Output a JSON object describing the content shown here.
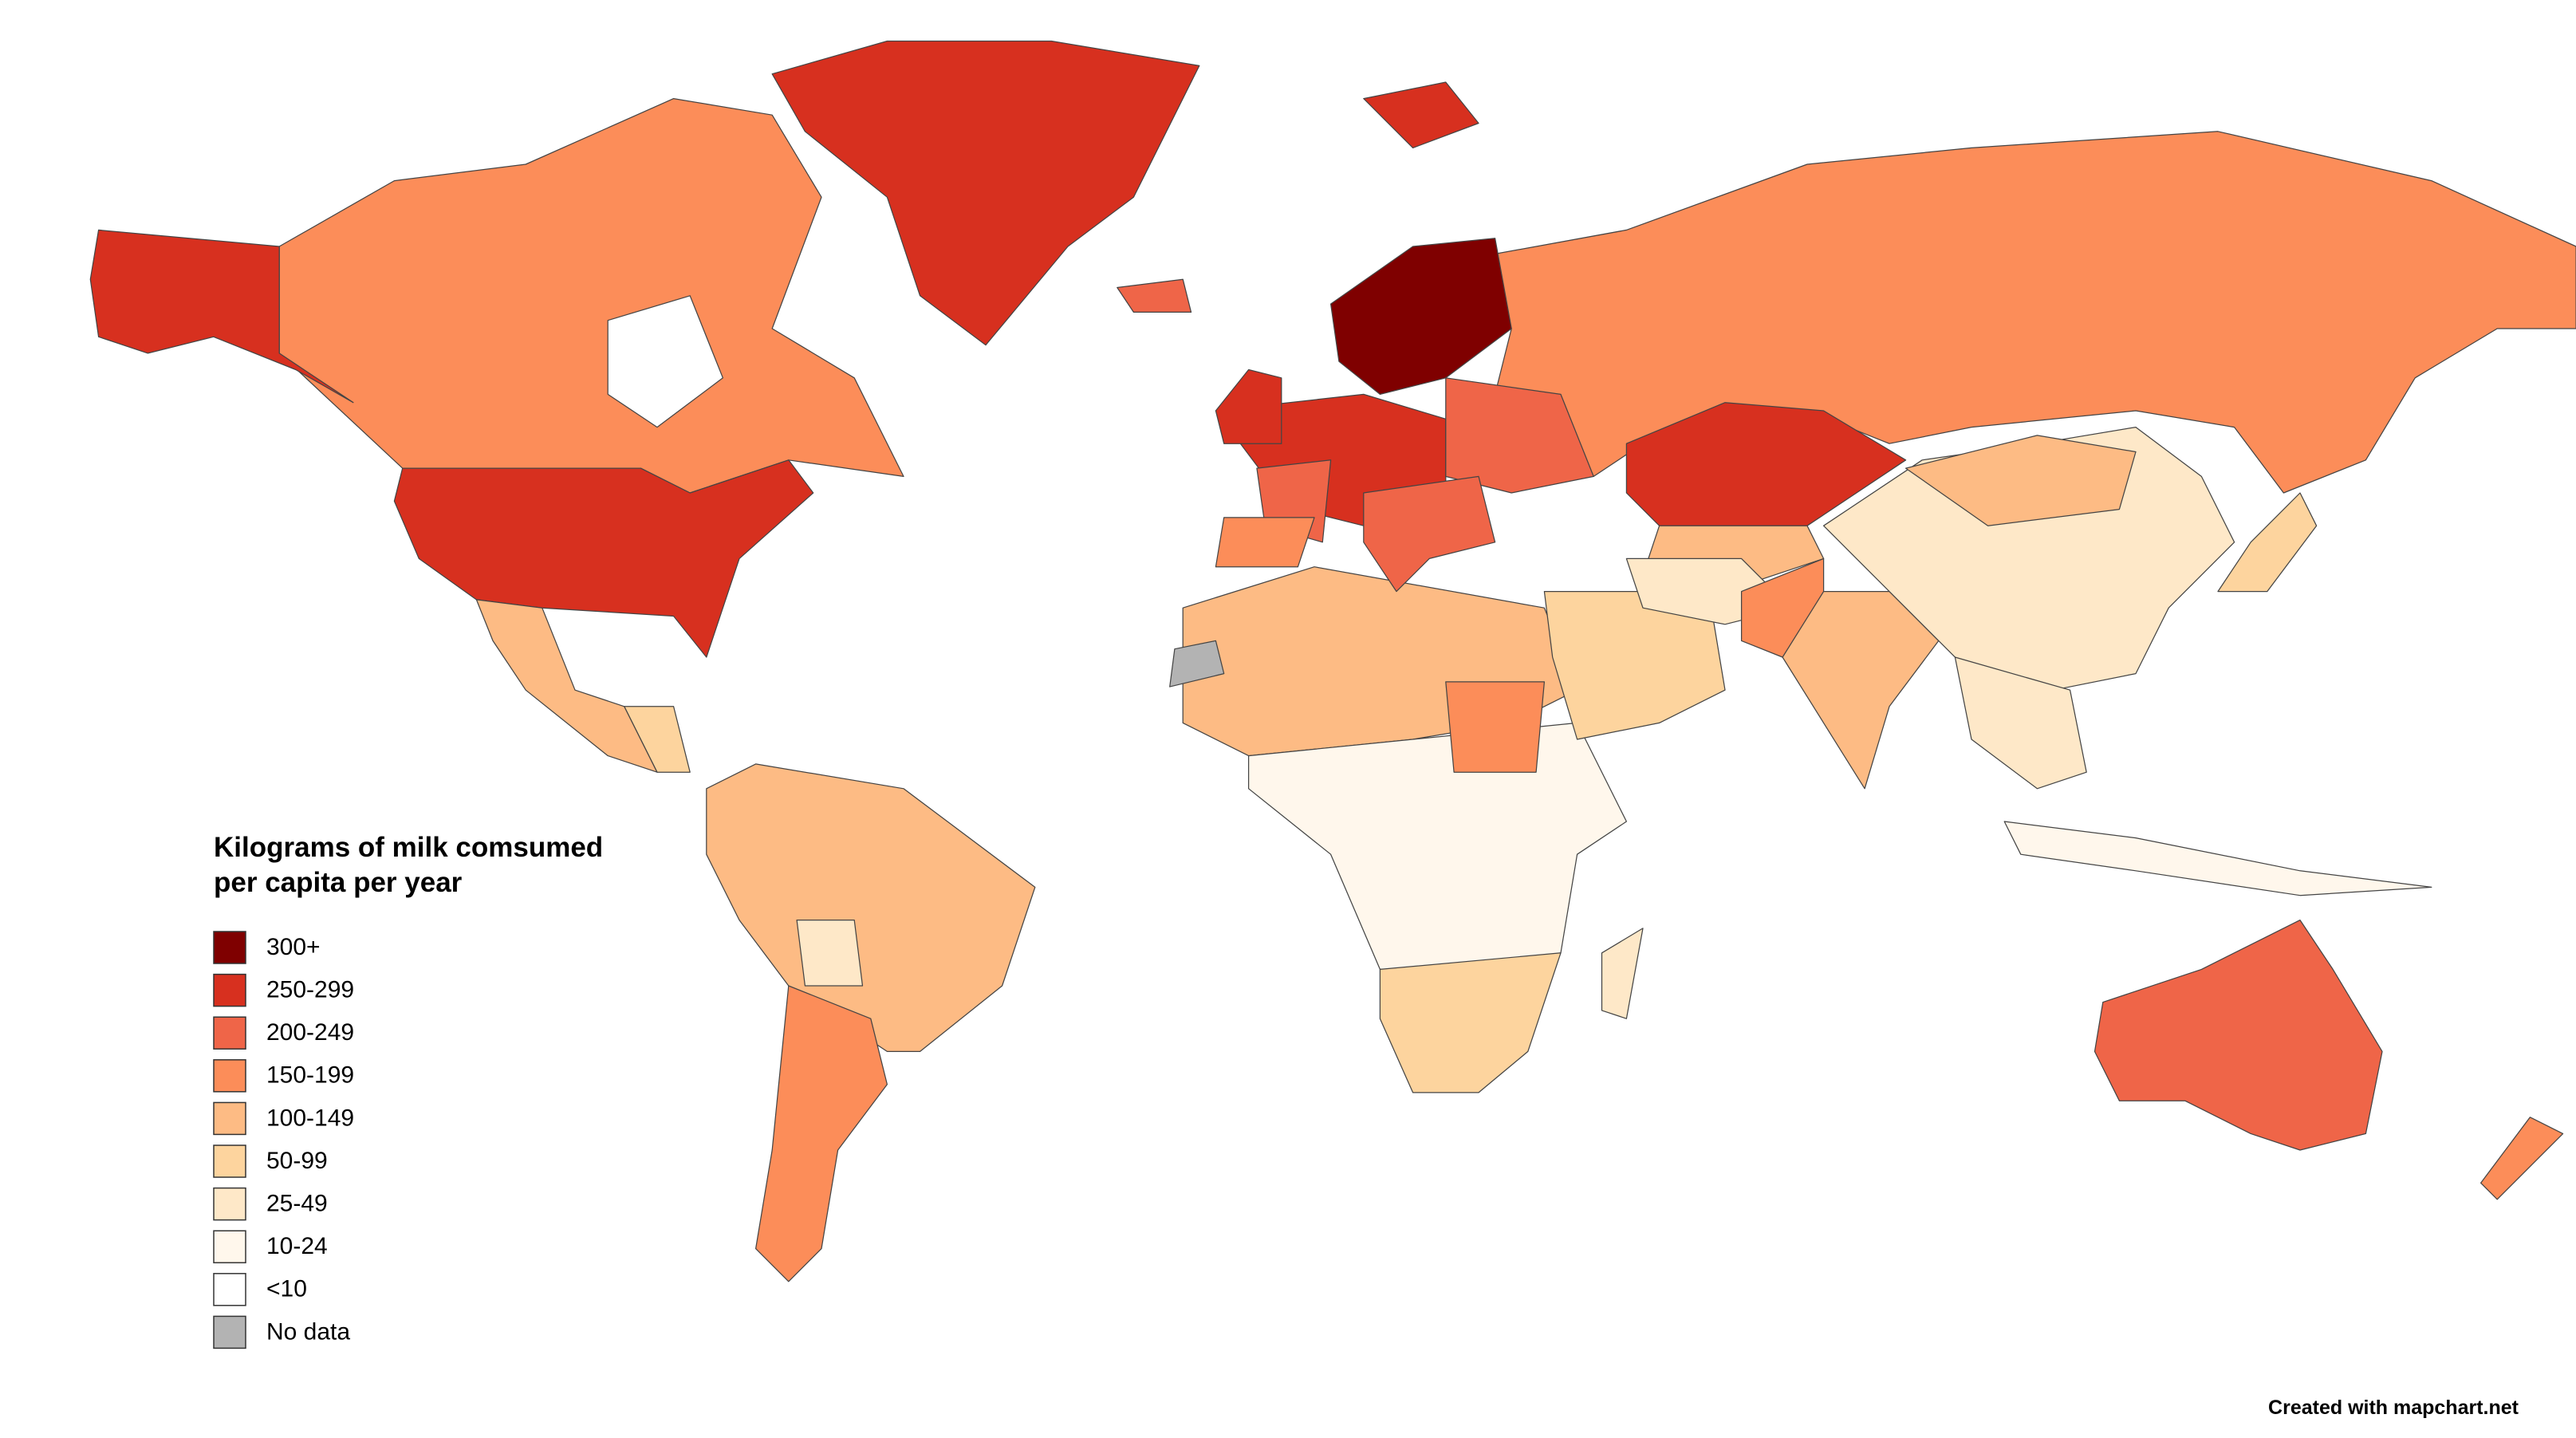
{
  "legend": {
    "title_lines": [
      "Kilograms of milk comsumed",
      "per capita per year"
    ],
    "items": [
      {
        "label": "300+",
        "color": "#7f0000"
      },
      {
        "label": "250-299",
        "color": "#d7301f"
      },
      {
        "label": "200-249",
        "color": "#ef6548"
      },
      {
        "label": "150-199",
        "color": "#fc8d59"
      },
      {
        "label": "100-149",
        "color": "#fdbb84"
      },
      {
        "label": "50-99",
        "color": "#fdd49e"
      },
      {
        "label": "25-49",
        "color": "#fee8c8"
      },
      {
        "label": "10-24",
        "color": "#fff7ec"
      },
      {
        "label": "<10",
        "color": "#ffffff"
      },
      {
        "label": "No data",
        "color": "#b3b3b3"
      }
    ]
  },
  "credit": "Created with mapchart.net"
}
